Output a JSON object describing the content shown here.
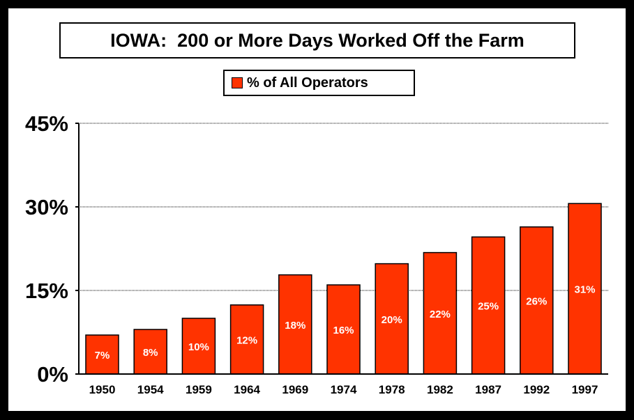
{
  "chart_data": {
    "type": "bar",
    "title": "IOWA:  200 or More Days Worked Off the Farm",
    "xlabel": "",
    "ylabel": "",
    "ylim": [
      0,
      45
    ],
    "yticks": [
      0,
      15,
      30,
      45
    ],
    "ytick_labels": [
      "0%",
      "15%",
      "30%",
      "45%"
    ],
    "grid": true,
    "legend": {
      "placement": "top-center",
      "entries": [
        "% of All Operators"
      ]
    },
    "categories": [
      "1950",
      "1954",
      "1959",
      "1964",
      "1969",
      "1974",
      "1978",
      "1982",
      "1987",
      "1992",
      "1997"
    ],
    "series": [
      {
        "name": "% of All Operators",
        "color": "#FF3300",
        "values": [
          7,
          8,
          10,
          12.4,
          17.8,
          16,
          19.8,
          21.8,
          24.6,
          26.4,
          30.6
        ],
        "labels": [
          "7%",
          "8%",
          "10%",
          "12%",
          "18%",
          "16%",
          "20%",
          "22%",
          "25%",
          "26%",
          "31%"
        ]
      }
    ]
  }
}
